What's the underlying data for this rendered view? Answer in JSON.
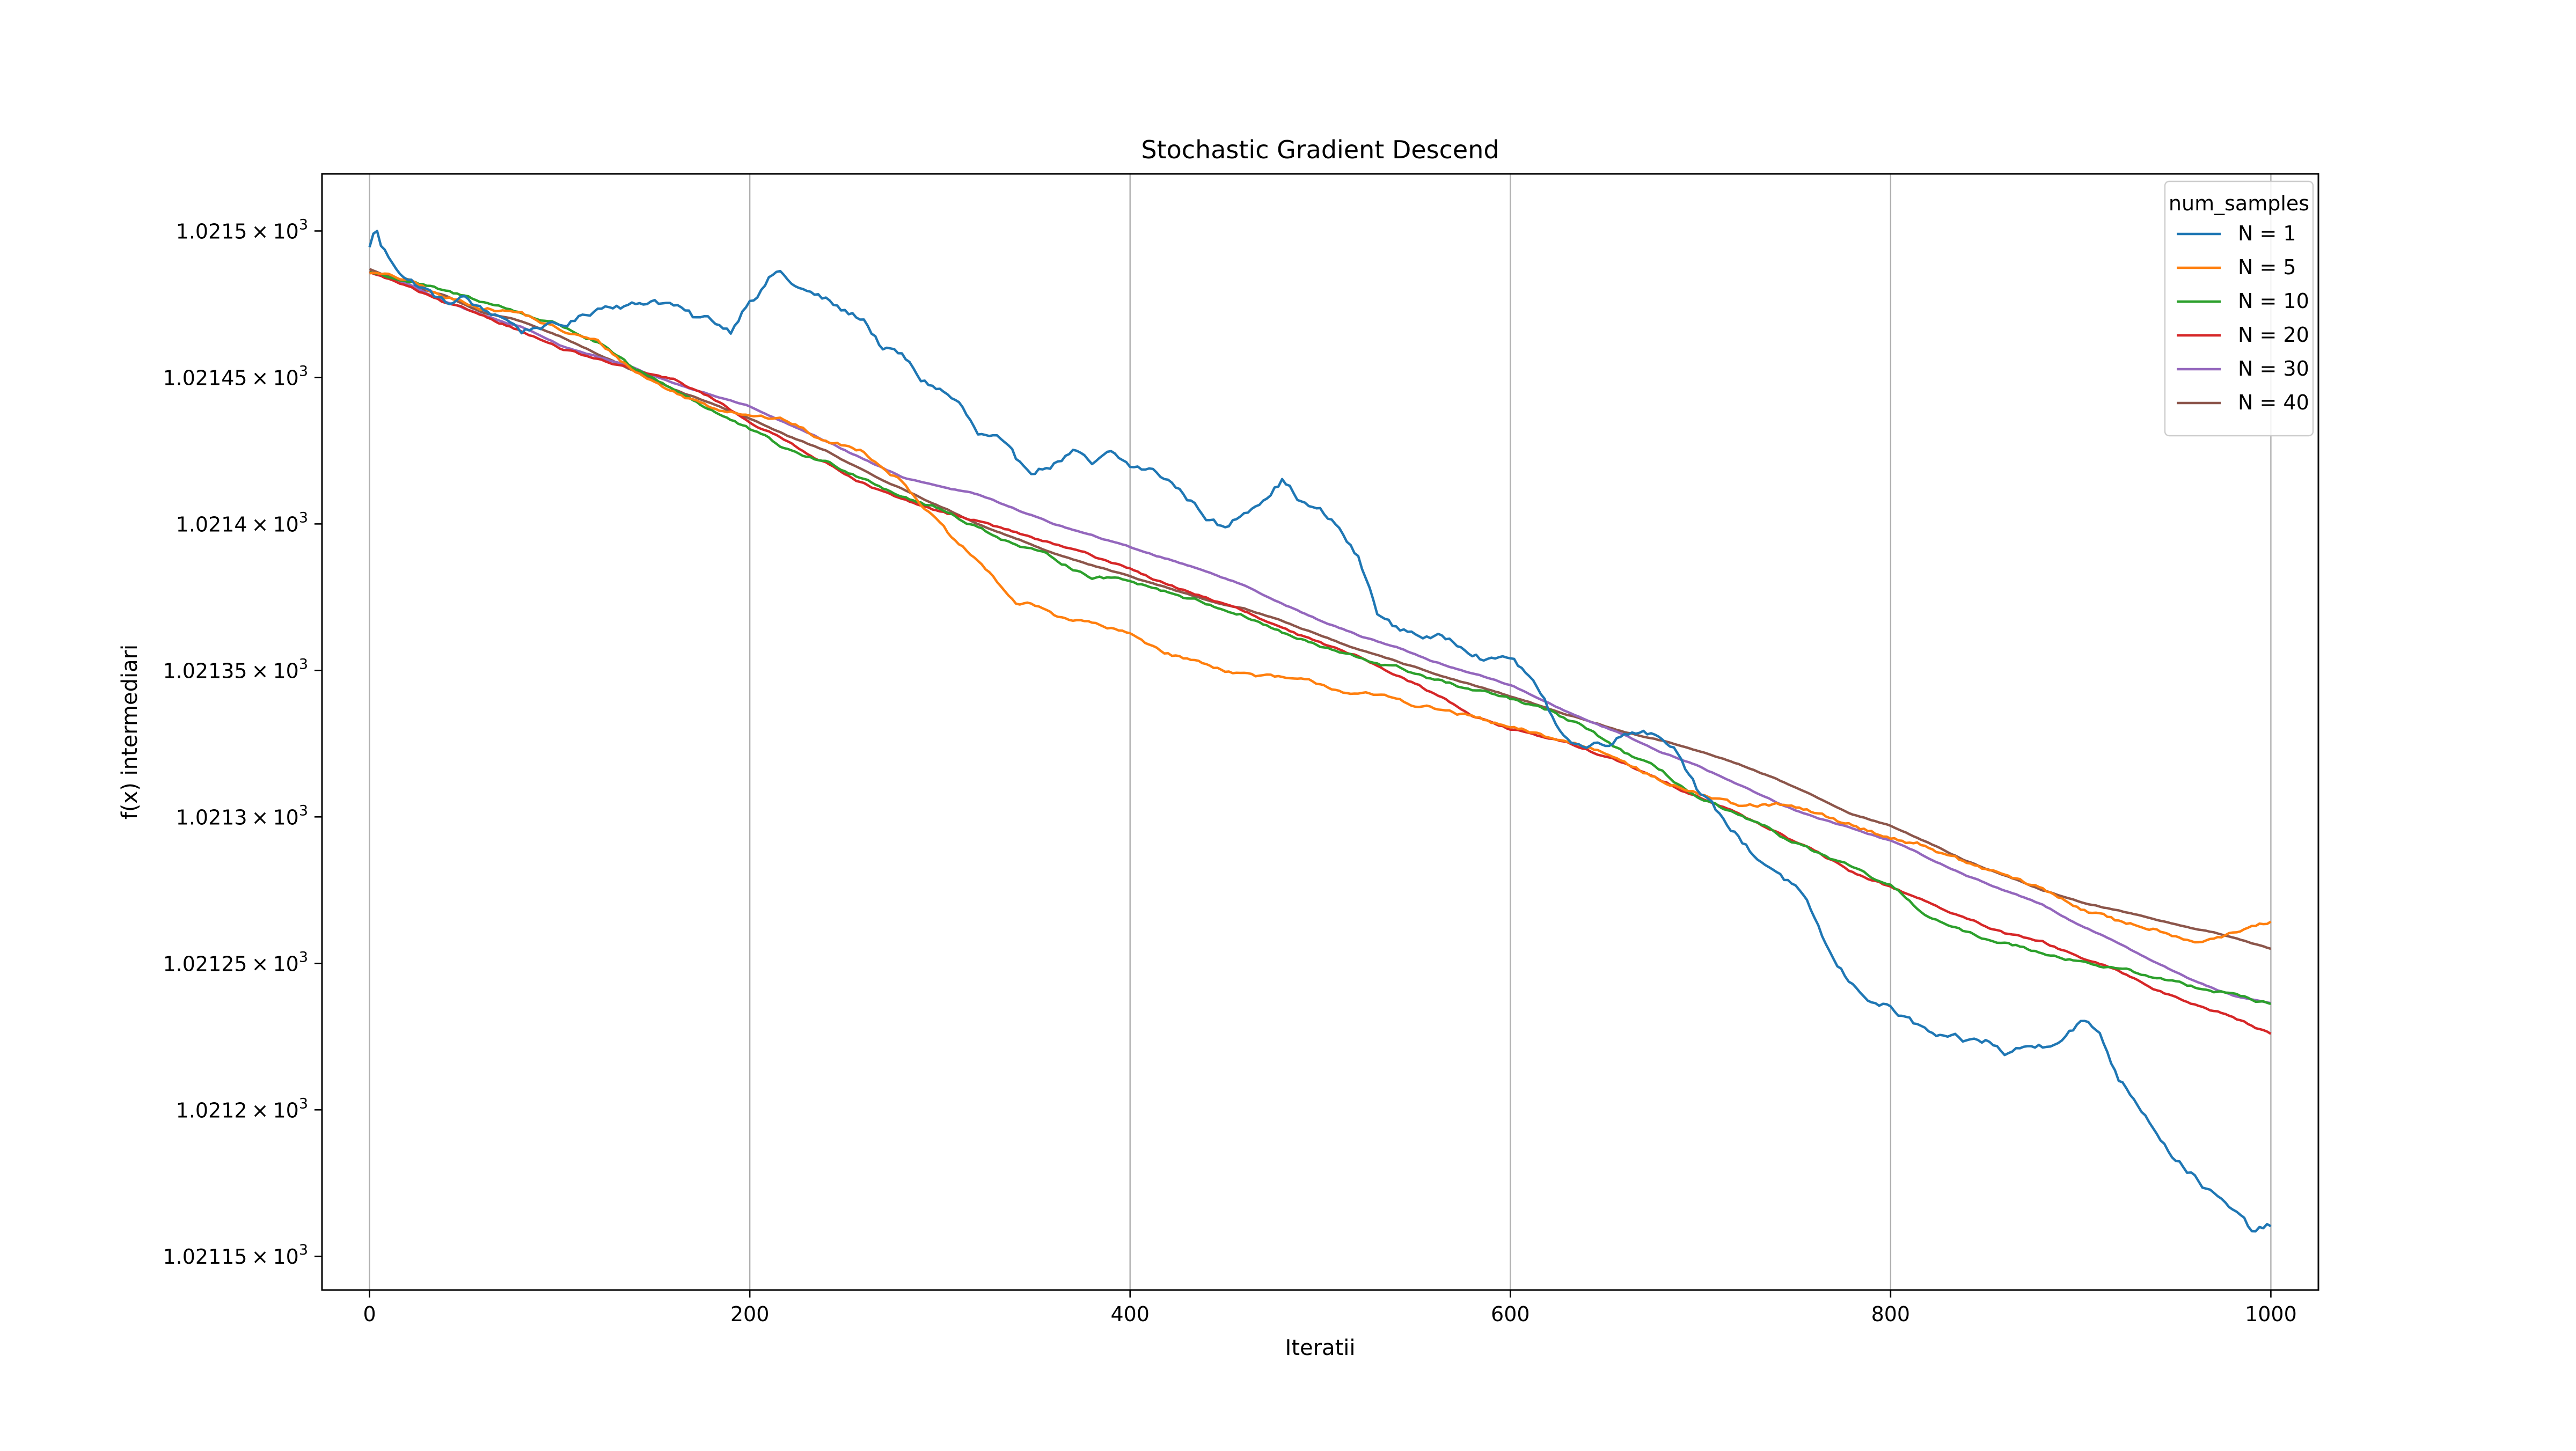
{
  "chart_data": {
    "type": "line",
    "title": "Stochastic Gradient Descend",
    "xlabel": "Iteratii",
    "ylabel": "f(x) intermediari",
    "xlim": [
      -25,
      1025
    ],
    "ylim": [
      1021.1385,
      1021.5195
    ],
    "x_ticks": [
      {
        "value": 0,
        "label": "0"
      },
      {
        "value": 200,
        "label": "200"
      },
      {
        "value": 400,
        "label": "400"
      },
      {
        "value": 600,
        "label": "600"
      },
      {
        "value": 800,
        "label": "800"
      },
      {
        "value": 1000,
        "label": "1000"
      }
    ],
    "y_ticks": [
      {
        "value": 1021.5,
        "mantissa": "1.0215",
        "times": "×",
        "base": "10",
        "exp": "3"
      },
      {
        "value": 1021.45,
        "mantissa": "1.02145",
        "times": "×",
        "base": "10",
        "exp": "3"
      },
      {
        "value": 1021.4,
        "mantissa": "1.0214",
        "times": "×",
        "base": "10",
        "exp": "3"
      },
      {
        "value": 1021.35,
        "mantissa": "1.02135",
        "times": "×",
        "base": "10",
        "exp": "3"
      },
      {
        "value": 1021.3,
        "mantissa": "1.0213",
        "times": "×",
        "base": "10",
        "exp": "3"
      },
      {
        "value": 1021.25,
        "mantissa": "1.02125",
        "times": "×",
        "base": "10",
        "exp": "3"
      },
      {
        "value": 1021.2,
        "mantissa": "1.0212",
        "times": "×",
        "base": "10",
        "exp": "3"
      },
      {
        "value": 1021.15,
        "mantissa": "1.02115",
        "times": "×",
        "base": "10",
        "exp": "3"
      }
    ],
    "grid": "x-only",
    "legend": {
      "title": "num_samples",
      "placement": "top-right"
    },
    "series": [
      {
        "name": "N = 1",
        "color": "#1f77b4",
        "x": [
          0,
          3,
          6,
          10,
          20,
          30,
          40,
          50,
          60,
          70,
          80,
          90,
          100,
          110,
          120,
          130,
          140,
          150,
          160,
          170,
          180,
          190,
          200,
          205,
          210,
          215,
          220,
          230,
          240,
          250,
          260,
          270,
          280,
          290,
          300,
          310,
          320,
          330,
          340,
          350,
          360,
          370,
          380,
          390,
          400,
          410,
          420,
          430,
          440,
          450,
          460,
          470,
          480,
          490,
          500,
          510,
          520,
          530,
          540,
          550,
          560,
          570,
          580,
          590,
          600,
          610,
          620,
          630,
          640,
          650,
          660,
          670,
          680,
          690,
          700,
          710,
          720,
          730,
          740,
          750,
          760,
          770,
          780,
          790,
          800,
          810,
          820,
          830,
          840,
          850,
          860,
          870,
          880,
          890,
          900,
          910,
          920,
          930,
          940,
          950,
          960,
          970,
          980,
          990,
          1000
        ],
        "y": [
          1021.494,
          1021.502,
          1021.495,
          1021.491,
          1021.484,
          1021.48,
          1021.475,
          1021.477,
          1021.472,
          1021.471,
          1021.466,
          1021.468,
          1021.467,
          1021.47,
          1021.474,
          1021.476,
          1021.475,
          1021.477,
          1021.475,
          1021.47,
          1021.469,
          1021.466,
          1021.478,
          1021.48,
          1021.484,
          1021.487,
          1021.483,
          1021.479,
          1021.476,
          1021.472,
          1021.47,
          1021.46,
          1021.457,
          1021.449,
          1021.446,
          1021.441,
          1021.43,
          1021.428,
          1021.42,
          1021.418,
          1021.421,
          1021.425,
          1021.419,
          1021.423,
          1021.419,
          1021.418,
          1021.415,
          1021.409,
          1021.403,
          1021.398,
          1021.404,
          1021.41,
          1021.416,
          1021.408,
          1021.404,
          1021.398,
          1021.388,
          1021.37,
          1021.364,
          1021.363,
          1021.361,
          1021.36,
          1021.358,
          1021.354,
          1021.355,
          1021.348,
          1021.336,
          1021.327,
          1021.324,
          1021.326,
          1021.329,
          1021.331,
          1021.328,
          1021.322,
          1021.308,
          1021.3,
          1021.293,
          1021.286,
          1021.282,
          1021.276,
          1021.264,
          1021.25,
          1021.242,
          1021.238,
          1021.235,
          1021.23,
          1021.226,
          1021.223,
          1021.222,
          1021.223,
          1021.219,
          1021.221,
          1021.222,
          1021.226,
          1021.231,
          1021.226,
          1021.211,
          1021.203,
          1021.194,
          1021.184,
          1021.178,
          1021.171,
          1021.165,
          1021.158,
          1021.16
        ]
      },
      {
        "name": "N = 5",
        "color": "#ff7f0e",
        "x": [
          0,
          20,
          40,
          60,
          80,
          100,
          120,
          140,
          160,
          180,
          200,
          220,
          240,
          260,
          280,
          300,
          310,
          320,
          330,
          340,
          350,
          360,
          380,
          400,
          420,
          440,
          460,
          480,
          500,
          520,
          540,
          560,
          580,
          600,
          620,
          640,
          660,
          680,
          700,
          720,
          740,
          760,
          780,
          800,
          820,
          840,
          860,
          880,
          900,
          920,
          940,
          960,
          980,
          1000
        ],
        "y": [
          1021.486,
          1021.483,
          1021.477,
          1021.474,
          1021.472,
          1021.466,
          1021.462,
          1021.452,
          1021.445,
          1021.44,
          1021.438,
          1021.435,
          1021.428,
          1021.425,
          1021.415,
          1021.4,
          1021.392,
          1021.387,
          1021.38,
          1021.373,
          1021.372,
          1021.369,
          1021.366,
          1021.362,
          1021.356,
          1021.352,
          1021.349,
          1021.347,
          1021.345,
          1021.342,
          1021.34,
          1021.337,
          1021.334,
          1021.33,
          1021.327,
          1021.324,
          1021.32,
          1021.312,
          1021.308,
          1021.303,
          1021.304,
          1021.301,
          1021.297,
          1021.293,
          1021.29,
          1021.284,
          1021.28,
          1021.275,
          1021.269,
          1021.264,
          1021.262,
          1021.258,
          1021.26,
          1021.264
        ]
      },
      {
        "name": "N = 10",
        "color": "#2ca02c",
        "x": [
          0,
          20,
          40,
          60,
          80,
          100,
          120,
          140,
          160,
          180,
          200,
          220,
          240,
          260,
          280,
          300,
          320,
          340,
          360,
          380,
          400,
          420,
          440,
          460,
          480,
          500,
          520,
          540,
          560,
          580,
          600,
          620,
          640,
          660,
          680,
          700,
          720,
          740,
          760,
          780,
          800,
          820,
          840,
          860,
          880,
          900,
          920,
          940,
          960,
          980,
          1000
        ],
        "y": [
          1021.486,
          1021.483,
          1021.479,
          1021.476,
          1021.472,
          1021.468,
          1021.462,
          1021.452,
          1021.446,
          1021.439,
          1021.432,
          1021.425,
          1021.421,
          1021.416,
          1021.41,
          1021.405,
          1021.399,
          1021.393,
          1021.388,
          1021.382,
          1021.381,
          1021.377,
          1021.373,
          1021.369,
          1021.363,
          1021.358,
          1021.354,
          1021.351,
          1021.347,
          1021.343,
          1021.34,
          1021.336,
          1021.33,
          1021.322,
          1021.315,
          1021.306,
          1021.3,
          1021.294,
          1021.288,
          1021.282,
          1021.276,
          1021.266,
          1021.26,
          1021.257,
          1021.254,
          1021.251,
          1021.248,
          1021.245,
          1021.242,
          1021.24,
          1021.236
        ]
      },
      {
        "name": "N = 20",
        "color": "#d62728",
        "x": [
          0,
          20,
          40,
          60,
          80,
          100,
          120,
          140,
          160,
          180,
          200,
          220,
          240,
          260,
          280,
          300,
          320,
          340,
          360,
          380,
          400,
          420,
          440,
          460,
          480,
          500,
          520,
          540,
          560,
          580,
          600,
          620,
          640,
          660,
          680,
          700,
          720,
          740,
          760,
          780,
          800,
          820,
          840,
          860,
          880,
          900,
          920,
          940,
          960,
          980,
          1000
        ],
        "y": [
          1021.486,
          1021.481,
          1021.475,
          1021.471,
          1021.466,
          1021.46,
          1021.456,
          1021.452,
          1021.449,
          1021.443,
          1021.435,
          1021.428,
          1021.421,
          1021.414,
          1021.408,
          1021.404,
          1021.401,
          1021.397,
          1021.393,
          1021.389,
          1021.385,
          1021.379,
          1021.375,
          1021.37,
          1021.364,
          1021.359,
          1021.355,
          1021.349,
          1021.342,
          1021.335,
          1021.33,
          1021.327,
          1021.323,
          1021.318,
          1021.312,
          1021.307,
          1021.301,
          1021.295,
          1021.288,
          1021.281,
          1021.276,
          1021.271,
          1021.265,
          1021.26,
          1021.257,
          1021.252,
          1021.247,
          1021.241,
          1021.236,
          1021.232,
          1021.226
        ]
      },
      {
        "name": "N = 30",
        "color": "#9467bd",
        "x": [
          0,
          20,
          40,
          60,
          80,
          100,
          120,
          140,
          160,
          180,
          200,
          220,
          240,
          260,
          280,
          300,
          320,
          340,
          360,
          380,
          400,
          420,
          440,
          460,
          480,
          500,
          520,
          540,
          560,
          580,
          600,
          620,
          640,
          660,
          680,
          700,
          720,
          740,
          760,
          780,
          800,
          820,
          840,
          860,
          880,
          900,
          920,
          940,
          960,
          980,
          1000
        ],
        "y": [
          1021.486,
          1021.482,
          1021.476,
          1021.471,
          1021.467,
          1021.461,
          1021.457,
          1021.453,
          1021.448,
          1021.444,
          1021.44,
          1021.434,
          1021.428,
          1021.422,
          1021.416,
          1021.413,
          1021.41,
          1021.405,
          1021.4,
          1021.396,
          1021.392,
          1021.388,
          1021.384,
          1021.379,
          1021.373,
          1021.367,
          1021.362,
          1021.358,
          1021.353,
          1021.349,
          1021.345,
          1021.339,
          1021.333,
          1021.328,
          1021.322,
          1021.317,
          1021.311,
          1021.305,
          1021.3,
          1021.296,
          1021.292,
          1021.286,
          1021.28,
          1021.275,
          1021.27,
          1021.263,
          1021.257,
          1021.25,
          1021.244,
          1021.239,
          1021.236
        ]
      },
      {
        "name": "N = 40",
        "color": "#8c564b",
        "x": [
          0,
          20,
          40,
          60,
          80,
          100,
          120,
          140,
          160,
          180,
          200,
          220,
          240,
          260,
          280,
          300,
          320,
          340,
          360,
          380,
          400,
          420,
          440,
          460,
          480,
          500,
          520,
          540,
          560,
          580,
          600,
          620,
          640,
          660,
          680,
          700,
          720,
          740,
          760,
          780,
          800,
          820,
          840,
          860,
          880,
          900,
          920,
          940,
          960,
          980,
          1000
        ],
        "y": [
          1021.487,
          1021.482,
          1021.478,
          1021.472,
          1021.469,
          1021.464,
          1021.458,
          1021.452,
          1021.446,
          1021.441,
          1021.436,
          1021.43,
          1021.425,
          1021.418,
          1021.412,
          1021.406,
          1021.4,
          1021.395,
          1021.39,
          1021.386,
          1021.382,
          1021.378,
          1021.374,
          1021.371,
          1021.367,
          1021.362,
          1021.357,
          1021.353,
          1021.349,
          1021.345,
          1021.341,
          1021.337,
          1021.333,
          1021.329,
          1021.326,
          1021.322,
          1021.318,
          1021.313,
          1021.307,
          1021.301,
          1021.297,
          1021.291,
          1021.285,
          1021.28,
          1021.275,
          1021.271,
          1021.268,
          1021.265,
          1021.262,
          1021.259,
          1021.255
        ]
      }
    ]
  }
}
